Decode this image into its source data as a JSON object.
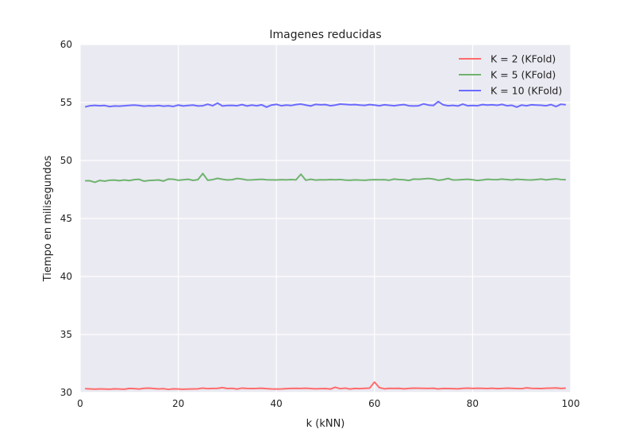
{
  "chart_data": {
    "type": "line",
    "title": "Imagenes reducidas",
    "xlabel": "k (kNN)",
    "ylabel": "Tiempo en milisegundos",
    "xlim": [
      0,
      100
    ],
    "ylim": [
      30,
      60
    ],
    "xticks": [
      0,
      20,
      40,
      60,
      80,
      100
    ],
    "yticks": [
      30,
      35,
      40,
      45,
      50,
      55,
      60
    ],
    "grid": true,
    "legend_position": "top-right",
    "background_color": "#EAEAF2",
    "x": [
      1,
      2,
      3,
      4,
      5,
      6,
      7,
      8,
      9,
      10,
      11,
      12,
      13,
      14,
      15,
      16,
      17,
      18,
      19,
      20,
      21,
      22,
      23,
      24,
      25,
      26,
      27,
      28,
      29,
      30,
      31,
      32,
      33,
      34,
      35,
      36,
      37,
      38,
      39,
      40,
      41,
      42,
      43,
      44,
      45,
      46,
      47,
      48,
      49,
      50,
      51,
      52,
      53,
      54,
      55,
      56,
      57,
      58,
      59,
      60,
      61,
      62,
      63,
      64,
      65,
      66,
      67,
      68,
      69,
      70,
      71,
      72,
      73,
      74,
      75,
      76,
      77,
      78,
      79,
      80,
      81,
      82,
      83,
      84,
      85,
      86,
      87,
      88,
      89,
      90,
      91,
      92,
      93,
      94,
      95,
      96,
      97,
      98,
      99
    ],
    "series": [
      {
        "name": "K = 2 (KFold)",
        "color": "#FF6B6B",
        "values": [
          30.33,
          30.31,
          30.29,
          30.31,
          30.3,
          30.28,
          30.32,
          30.3,
          30.28,
          30.35,
          30.33,
          30.3,
          30.36,
          30.38,
          30.34,
          30.31,
          30.33,
          30.27,
          30.32,
          30.3,
          30.28,
          30.3,
          30.31,
          30.32,
          30.38,
          30.33,
          30.35,
          30.36,
          30.42,
          30.34,
          30.36,
          30.3,
          30.38,
          30.35,
          30.34,
          30.35,
          30.37,
          30.33,
          30.31,
          30.3,
          30.31,
          30.33,
          30.35,
          30.36,
          30.35,
          30.37,
          30.34,
          30.32,
          30.33,
          30.34,
          30.3,
          30.45,
          30.33,
          30.38,
          30.3,
          30.35,
          30.33,
          30.36,
          30.38,
          30.9,
          30.42,
          30.32,
          30.36,
          30.35,
          30.36,
          30.32,
          30.35,
          30.38,
          30.37,
          30.36,
          30.35,
          30.37,
          30.31,
          30.35,
          30.34,
          30.33,
          30.32,
          30.36,
          30.38,
          30.35,
          30.37,
          30.36,
          30.34,
          30.37,
          30.33,
          30.35,
          30.38,
          30.36,
          30.34,
          30.33,
          30.4,
          30.36,
          30.35,
          30.34,
          30.37,
          30.38,
          30.39,
          30.35,
          30.38
        ]
      },
      {
        "name": "K = 5 (KFold)",
        "color": "#6FB36F",
        "values": [
          48.25,
          48.25,
          48.12,
          48.28,
          48.22,
          48.3,
          48.31,
          48.26,
          48.32,
          48.27,
          48.35,
          48.38,
          48.22,
          48.28,
          48.3,
          48.32,
          48.23,
          48.4,
          48.38,
          48.3,
          48.34,
          48.38,
          48.29,
          48.35,
          48.88,
          48.3,
          48.35,
          48.46,
          48.38,
          48.32,
          48.35,
          48.45,
          48.4,
          48.32,
          48.33,
          48.36,
          48.38,
          48.34,
          48.33,
          48.32,
          48.35,
          48.33,
          48.36,
          48.33,
          48.82,
          48.3,
          48.38,
          48.31,
          48.34,
          48.33,
          48.36,
          48.34,
          48.36,
          48.31,
          48.3,
          48.33,
          48.31,
          48.3,
          48.33,
          48.35,
          48.34,
          48.35,
          48.3,
          48.4,
          48.36,
          48.34,
          48.28,
          48.4,
          48.38,
          48.42,
          48.45,
          48.4,
          48.3,
          48.35,
          48.45,
          48.32,
          48.33,
          48.36,
          48.38,
          48.34,
          48.28,
          48.32,
          48.38,
          48.36,
          48.35,
          48.4,
          48.36,
          48.32,
          48.38,
          48.36,
          48.33,
          48.32,
          48.36,
          48.4,
          48.33,
          48.38,
          48.42,
          48.36,
          48.35
        ]
      },
      {
        "name": "K = 10 (KFold)",
        "color": "#6B6BFF",
        "values": [
          54.62,
          54.72,
          54.75,
          54.72,
          54.74,
          54.65,
          54.7,
          54.68,
          54.72,
          54.75,
          54.78,
          54.74,
          54.68,
          54.72,
          54.7,
          54.74,
          54.68,
          54.72,
          54.66,
          54.78,
          54.7,
          54.74,
          54.78,
          54.7,
          54.72,
          54.85,
          54.72,
          54.95,
          54.7,
          54.74,
          54.75,
          54.72,
          54.82,
          54.7,
          54.78,
          54.72,
          54.8,
          54.6,
          54.78,
          54.84,
          54.72,
          54.78,
          54.74,
          54.82,
          54.86,
          54.78,
          54.7,
          54.84,
          54.8,
          54.82,
          54.72,
          54.78,
          54.86,
          54.84,
          54.8,
          54.82,
          54.78,
          54.75,
          54.82,
          54.78,
          54.72,
          54.8,
          54.76,
          54.72,
          54.78,
          54.82,
          54.72,
          54.7,
          54.72,
          54.88,
          54.78,
          54.74,
          55.08,
          54.8,
          54.72,
          54.75,
          54.7,
          54.86,
          54.72,
          54.74,
          54.72,
          54.82,
          54.78,
          54.8,
          54.76,
          54.84,
          54.72,
          54.76,
          54.6,
          54.78,
          54.72,
          54.8,
          54.78,
          54.76,
          54.72,
          54.82,
          54.65,
          54.85,
          54.8
        ]
      }
    ]
  }
}
